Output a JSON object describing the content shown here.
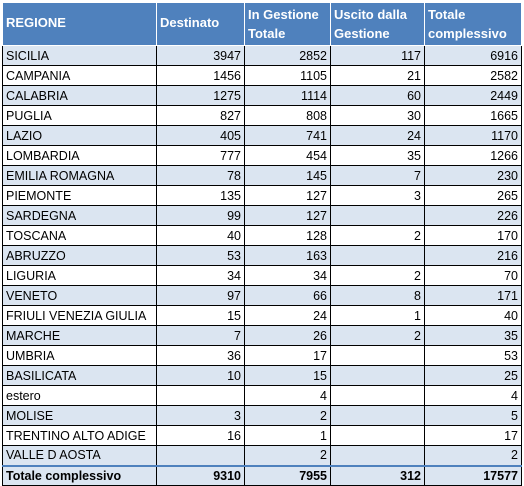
{
  "table": {
    "headers": [
      "REGIONE",
      "Destinato",
      "In Gestione Totale",
      "Uscito dalla Gestione",
      "Totale complessivo"
    ],
    "rows": [
      {
        "regione": "SICILIA",
        "destinato": "3947",
        "in_gestione": "2852",
        "uscito": "117",
        "totale": "6916"
      },
      {
        "regione": "CAMPANIA",
        "destinato": "1456",
        "in_gestione": "1105",
        "uscito": "21",
        "totale": "2582"
      },
      {
        "regione": "CALABRIA",
        "destinato": "1275",
        "in_gestione": "1114",
        "uscito": "60",
        "totale": "2449"
      },
      {
        "regione": "PUGLIA",
        "destinato": "827",
        "in_gestione": "808",
        "uscito": "30",
        "totale": "1665"
      },
      {
        "regione": "LAZIO",
        "destinato": "405",
        "in_gestione": "741",
        "uscito": "24",
        "totale": "1170"
      },
      {
        "regione": "LOMBARDIA",
        "destinato": "777",
        "in_gestione": "454",
        "uscito": "35",
        "totale": "1266"
      },
      {
        "regione": "EMILIA ROMAGNA",
        "destinato": "78",
        "in_gestione": "145",
        "uscito": "7",
        "totale": "230"
      },
      {
        "regione": "PIEMONTE",
        "destinato": "135",
        "in_gestione": "127",
        "uscito": "3",
        "totale": "265"
      },
      {
        "regione": "SARDEGNA",
        "destinato": "99",
        "in_gestione": "127",
        "uscito": "",
        "totale": "226"
      },
      {
        "regione": "TOSCANA",
        "destinato": "40",
        "in_gestione": "128",
        "uscito": "2",
        "totale": "170"
      },
      {
        "regione": "ABRUZZO",
        "destinato": "53",
        "in_gestione": "163",
        "uscito": "",
        "totale": "216"
      },
      {
        "regione": "LIGURIA",
        "destinato": "34",
        "in_gestione": "34",
        "uscito": "2",
        "totale": "70"
      },
      {
        "regione": "VENETO",
        "destinato": "97",
        "in_gestione": "66",
        "uscito": "8",
        "totale": "171"
      },
      {
        "regione": "FRIULI VENEZIA GIULIA",
        "destinato": "15",
        "in_gestione": "24",
        "uscito": "1",
        "totale": "40"
      },
      {
        "regione": "MARCHE",
        "destinato": "7",
        "in_gestione": "26",
        "uscito": "2",
        "totale": "35"
      },
      {
        "regione": "UMBRIA",
        "destinato": "36",
        "in_gestione": "17",
        "uscito": "",
        "totale": "53"
      },
      {
        "regione": "BASILICATA",
        "destinato": "10",
        "in_gestione": "15",
        "uscito": "",
        "totale": "25"
      },
      {
        "regione": "estero",
        "destinato": "",
        "in_gestione": "4",
        "uscito": "",
        "totale": "4"
      },
      {
        "regione": "MOLISE",
        "destinato": "3",
        "in_gestione": "2",
        "uscito": "",
        "totale": "5"
      },
      {
        "regione": "TRENTINO ALTO ADIGE",
        "destinato": "16",
        "in_gestione": "1",
        "uscito": "",
        "totale": "17"
      },
      {
        "regione": "VALLE D AOSTA",
        "destinato": "",
        "in_gestione": "2",
        "uscito": "",
        "totale": "2"
      }
    ],
    "total": {
      "regione": "Totale complessivo",
      "destinato": "9310",
      "in_gestione": "7955",
      "uscito": "312",
      "totale": "17577"
    }
  }
}
